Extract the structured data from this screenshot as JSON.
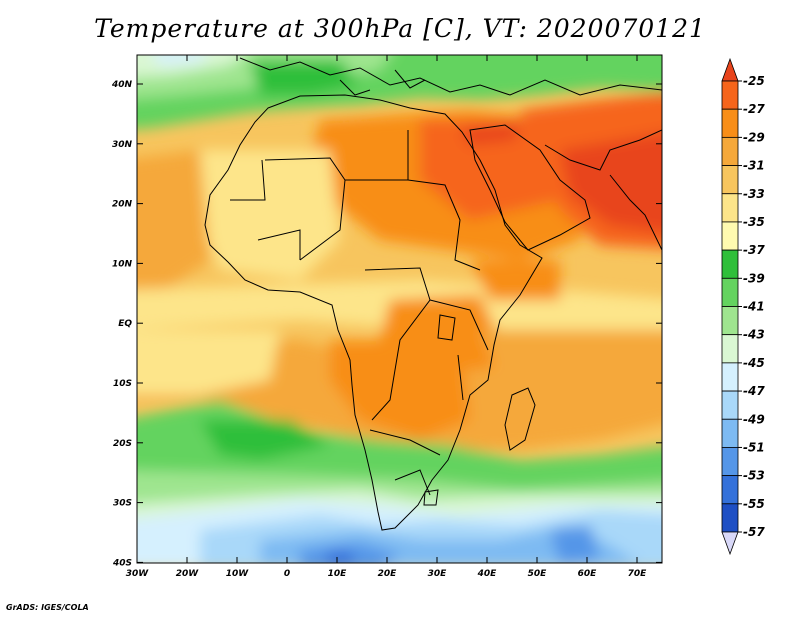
{
  "title": "Temperature at 300hPa [C], VT: 2020070121",
  "credit": "GrADS: IGES/COLA",
  "lat_labels": [
    "40N",
    "30N",
    "20N",
    "10N",
    "EQ",
    "10S",
    "20S",
    "30S",
    "40S"
  ],
  "lon_labels": [
    "30W",
    "20W",
    "10W",
    "0",
    "10E",
    "20E",
    "30E",
    "40E",
    "50E",
    "60E",
    "70E"
  ],
  "colorbar": {
    "labels": [
      "-25",
      "-27",
      "-29",
      "-31",
      "-33",
      "-35",
      "-37",
      "-39",
      "-41",
      "-43",
      "-45",
      "-47",
      "-49",
      "-51",
      "-53",
      "-55",
      "-57"
    ],
    "colors": [
      "#e8441c",
      "#f6651b",
      "#f88e18",
      "#f5a83a",
      "#f7c55e",
      "#fde58a",
      "#fffab0",
      "#2fbf3a",
      "#64d35f",
      "#9fe58f",
      "#daf7d3",
      "#d5f0fe",
      "#a9d8f9",
      "#7dbaf2",
      "#5596e8",
      "#3471da",
      "#1e4fc4",
      "#0d1f82"
    ]
  }
}
